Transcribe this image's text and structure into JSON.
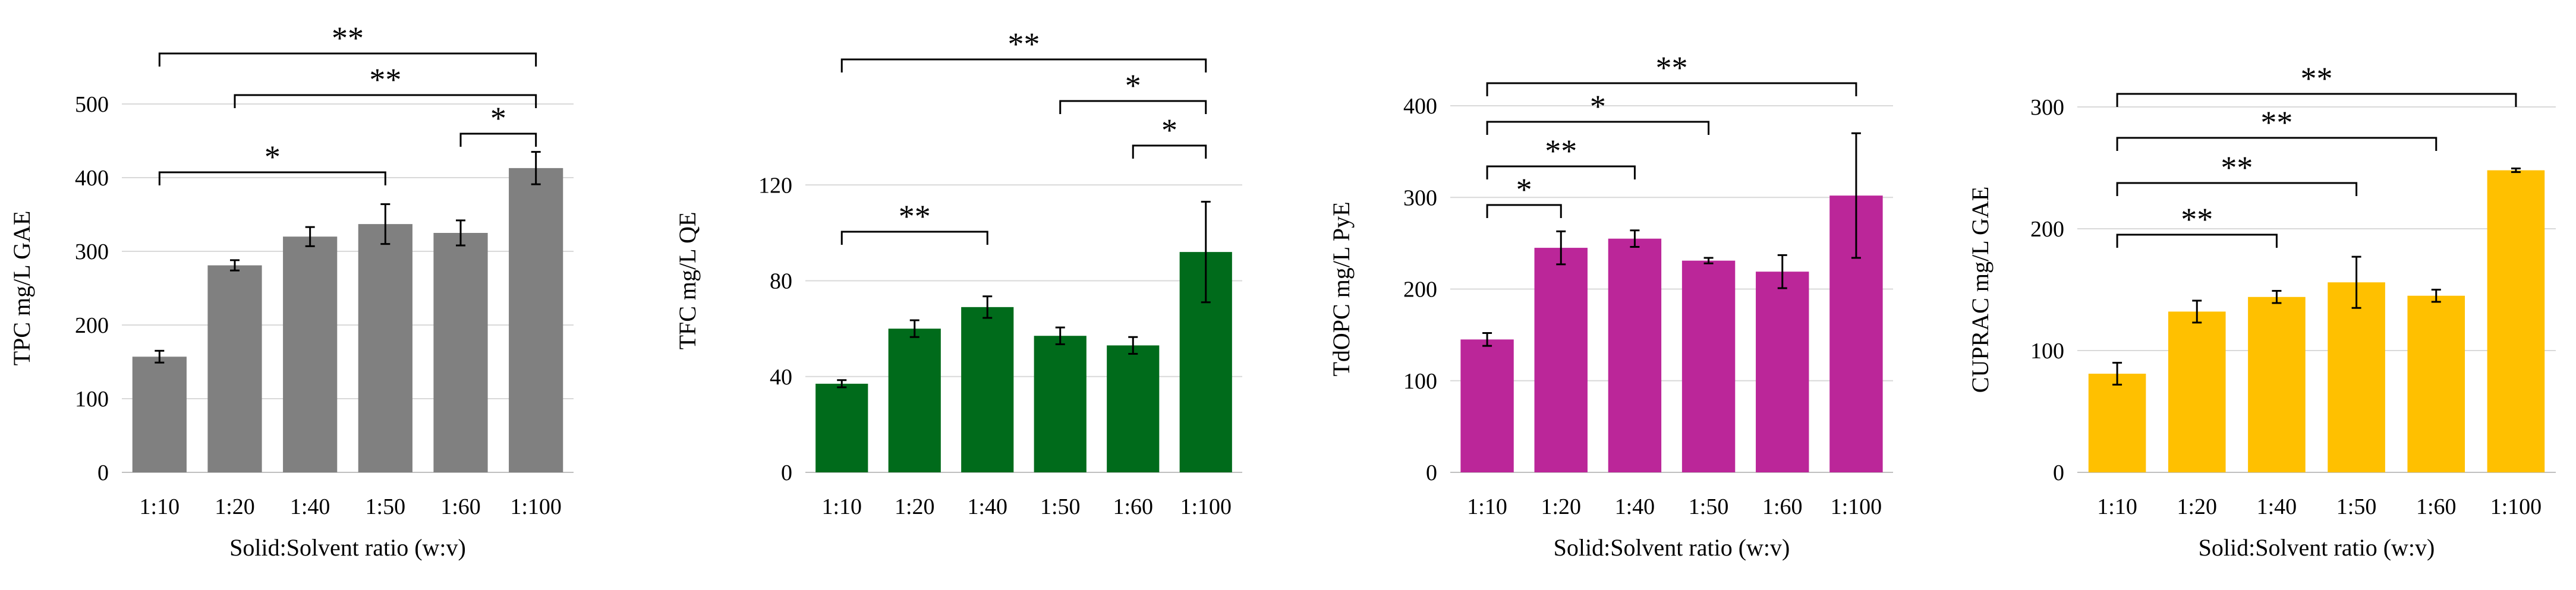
{
  "chart_data": [
    {
      "type": "bar",
      "title": "",
      "xlabel": "Solid:Solvent ratio (w:v)",
      "ylabel": "TPC mg/L GAE",
      "categories": [
        "1:10",
        "1:20",
        "1:40",
        "1:50",
        "1:60",
        "1:100"
      ],
      "values": [
        157,
        281,
        320,
        337,
        325,
        413
      ],
      "errors": [
        8,
        7,
        13,
        27,
        17,
        22
      ],
      "ylim": [
        0,
        500
      ],
      "yticks": [
        0,
        100,
        200,
        300,
        400,
        500
      ],
      "grid": true,
      "color": "#808080",
      "significance": [
        {
          "from": 0,
          "to": 5,
          "label": "**"
        },
        {
          "from": 1,
          "to": 5,
          "label": "**"
        },
        {
          "from": 4,
          "to": 5,
          "label": "*"
        },
        {
          "from": 0,
          "to": 3,
          "label": "*"
        }
      ]
    },
    {
      "type": "bar",
      "title": "",
      "xlabel": "",
      "ylabel": "TFC mg/L QE",
      "categories": [
        "1:10",
        "1:20",
        "1:40",
        "1:50",
        "1:60",
        "1:100"
      ],
      "values": [
        37,
        60,
        69,
        57,
        53,
        92
      ],
      "errors": [
        1.5,
        3.5,
        4.5,
        3.5,
        3.5,
        21
      ],
      "ylim": [
        0,
        160
      ],
      "yticks": [
        0,
        40,
        80,
        120
      ],
      "grid": true,
      "color": "#006b1b",
      "significance": [
        {
          "from": 0,
          "to": 5,
          "label": "**"
        },
        {
          "from": 3,
          "to": 5,
          "label": "*"
        },
        {
          "from": 4,
          "to": 5,
          "label": "*"
        },
        {
          "from": 0,
          "to": 2,
          "label": "**"
        }
      ]
    },
    {
      "type": "bar",
      "title": "",
      "xlabel": "Solid:Solvent ratio (w:v)",
      "ylabel": "TdOPC mg/L PyE",
      "categories": [
        "1:10",
        "1:20",
        "1:40",
        "1:50",
        "1:60",
        "1:100"
      ],
      "values": [
        145,
        245,
        255,
        231,
        219,
        302
      ],
      "errors": [
        7,
        18,
        9,
        3,
        18,
        68
      ],
      "ylim": [
        0,
        400
      ],
      "yticks": [
        0,
        100,
        200,
        300,
        400
      ],
      "grid": true,
      "color": "#bb2699",
      "significance": [
        {
          "from": 0,
          "to": 5,
          "label": "**"
        },
        {
          "from": 0,
          "to": 3,
          "label": "*"
        },
        {
          "from": 0,
          "to": 2,
          "label": "**"
        },
        {
          "from": 0,
          "to": 1,
          "label": "*"
        }
      ]
    },
    {
      "type": "bar",
      "title": "",
      "xlabel": "Solid:Solvent ratio (w:v)",
      "ylabel": "CUPRAC mg/L GAE",
      "categories": [
        "1:10",
        "1:20",
        "1:40",
        "1:50",
        "1:60",
        "1:100"
      ],
      "values": [
        81,
        132,
        144,
        156,
        145,
        248
      ],
      "errors": [
        9,
        9,
        5,
        21,
        5,
        1.5
      ],
      "ylim": [
        0,
        300
      ],
      "yticks": [
        0,
        100,
        200,
        300
      ],
      "grid": true,
      "color": "#ffc000",
      "significance": [
        {
          "from": 0,
          "to": 5,
          "label": "**"
        },
        {
          "from": 0,
          "to": 4,
          "label": "**"
        },
        {
          "from": 0,
          "to": 3,
          "label": "**"
        },
        {
          "from": 0,
          "to": 2,
          "label": "**"
        }
      ]
    }
  ]
}
